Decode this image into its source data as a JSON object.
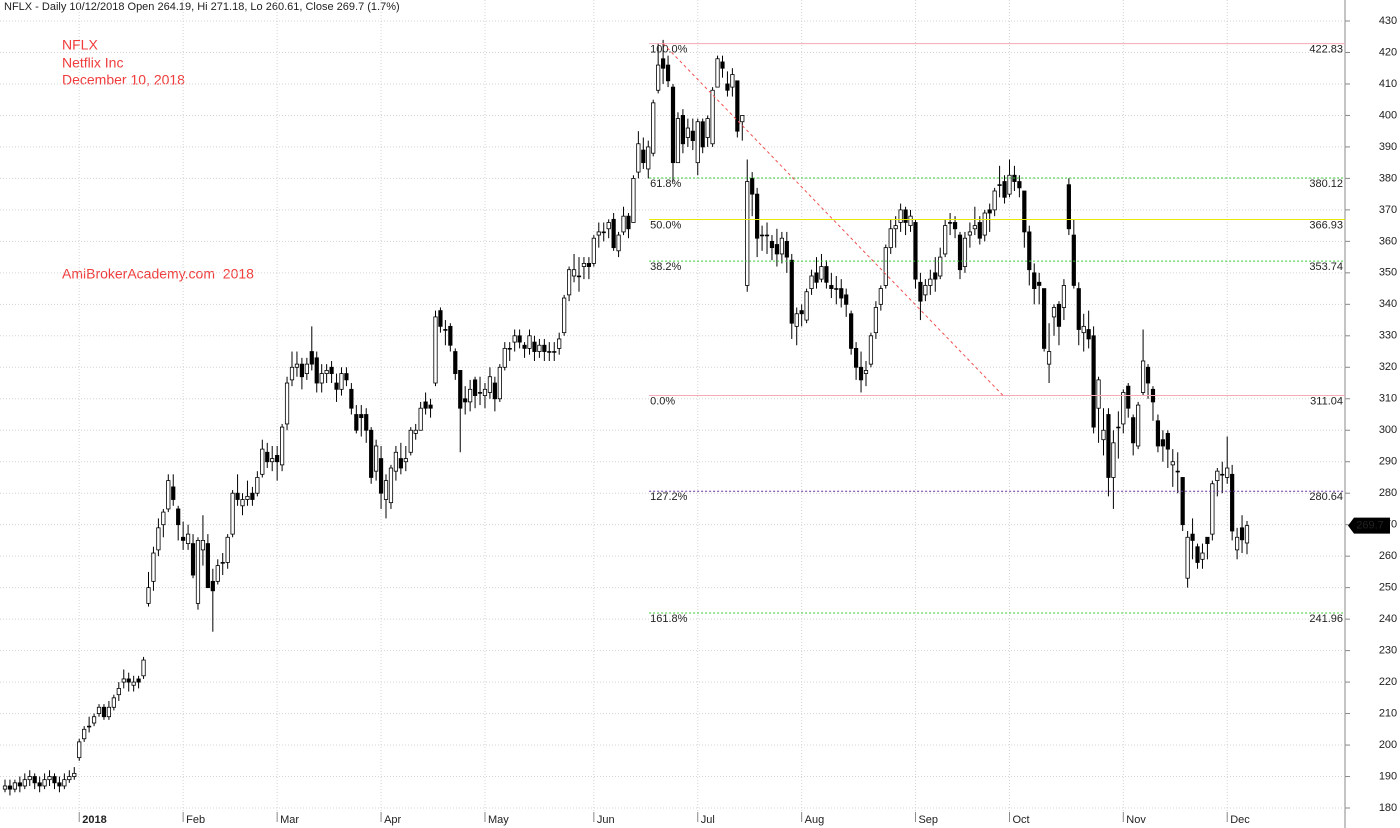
{
  "chart_data": {
    "type": "candlestick",
    "title": "NFLX - Daily 10/12/2018 Open 264.19, Hi 271.18, Lo 260.61, Close 269.7 (1.7%)",
    "annotations": [
      "NFLX",
      "Netflix Inc",
      "December 10, 2018"
    ],
    "watermark": "AmiBrokerAcademy.com  2018",
    "categories": [
      null,
      null,
      null,
      null,
      null,
      null,
      null,
      null,
      null,
      null,
      null,
      null,
      null,
      null,
      null,
      "2018",
      null,
      null,
      null,
      null,
      null,
      null,
      null,
      null,
      null,
      null,
      null,
      null,
      null,
      null,
      null,
      null,
      null,
      null,
      null,
      null,
      "Feb",
      null,
      null,
      null,
      null,
      null,
      null,
      null,
      null,
      null,
      null,
      null,
      null,
      null,
      null,
      null,
      null,
      null,
      null,
      "Mar",
      null,
      null,
      null,
      null,
      null,
      null,
      null,
      null,
      null,
      null,
      null,
      null,
      null,
      null,
      null,
      null,
      null,
      null,
      null,
      null,
      "Apr",
      null,
      null,
      null,
      null,
      null,
      null,
      null,
      null,
      null,
      null,
      null,
      null,
      null,
      null,
      null,
      null,
      null,
      null,
      null,
      null,
      "May",
      null,
      null,
      null,
      null,
      null,
      null,
      null,
      null,
      null,
      null,
      null,
      null,
      null,
      null,
      null,
      null,
      null,
      null,
      null,
      null,
      null,
      "Jun",
      null,
      null,
      null,
      null,
      null,
      null,
      null,
      null,
      null,
      null,
      null,
      null,
      null,
      null,
      null,
      null,
      null,
      null,
      null,
      null,
      "Jul",
      null,
      null,
      null,
      null,
      null,
      null,
      null,
      null,
      null,
      null,
      null,
      null,
      null,
      null,
      null,
      null,
      null,
      null,
      null,
      null,
      "Aug",
      null,
      null,
      null,
      null,
      null,
      null,
      null,
      null,
      null,
      null,
      null,
      null,
      null,
      null,
      null,
      null,
      null,
      null,
      null,
      null,
      null,
      null,
      "Sep",
      null,
      null,
      null,
      null,
      null,
      null,
      null,
      null,
      null,
      null,
      null,
      null,
      null,
      null,
      null,
      null,
      null,
      null,
      "Oct",
      null,
      null,
      null,
      null,
      null,
      null,
      null,
      null,
      null,
      null,
      null,
      null,
      null,
      null,
      null,
      null,
      null,
      null,
      null,
      null,
      null,
      null,
      "Nov",
      null,
      null,
      null,
      null,
      null,
      null,
      null,
      null,
      null,
      null,
      null,
      null,
      null,
      null,
      null,
      null,
      null,
      null,
      null,
      null,
      "Dec",
      null,
      null,
      null,
      null
    ],
    "open": [
      186,
      187,
      186,
      188,
      187,
      189,
      190,
      188,
      187,
      189,
      190,
      188,
      187,
      189,
      190,
      196,
      202,
      206,
      207,
      210,
      212,
      209,
      212,
      216,
      220,
      221,
      219,
      221,
      222,
      245,
      252,
      262,
      270,
      275,
      282,
      275,
      266,
      264,
      264,
      245,
      262,
      264,
      252,
      252,
      258,
      258,
      267,
      280,
      276,
      278,
      280,
      280,
      286,
      293,
      290,
      292,
      289,
      302,
      316,
      320,
      321,
      318,
      325,
      323,
      315,
      318,
      320,
      315,
      313,
      318,
      313,
      305,
      305,
      305,
      300,
      287,
      291,
      278,
      277,
      287,
      291,
      290,
      293,
      299,
      300,
      309,
      308,
      315,
      338,
      332,
      333,
      325,
      319,
      310,
      309,
      316,
      312,
      311,
      312,
      315,
      310,
      320,
      326,
      328,
      330,
      327,
      326,
      328,
      325,
      327,
      325,
      325,
      326,
      331,
      343,
      349,
      349,
      352,
      353,
      353,
      362,
      363,
      364,
      367,
      357,
      363,
      368,
      366,
      382,
      389,
      383,
      388,
      408,
      418,
      416,
      409,
      385,
      400,
      393,
      395,
      385,
      398,
      393,
      391,
      409,
      417,
      410,
      409,
      411,
      398,
      346,
      380,
      375,
      362,
      362,
      360,
      359,
      356,
      360,
      354,
      333,
      338,
      335,
      345,
      350,
      348,
      352,
      346,
      345,
      345,
      343,
      337,
      326,
      320,
      318,
      321,
      331,
      340,
      346,
      358,
      364,
      366,
      370,
      365,
      366,
      347,
      343,
      346,
      350,
      349,
      356,
      366,
      366,
      362,
      352,
      362,
      364,
      366,
      362,
      370,
      370,
      378,
      379,
      375,
      381,
      379,
      376,
      363,
      350,
      347,
      345,
      321,
      336,
      340,
      339,
      378,
      362,
      345,
      331,
      332,
      330,
      307,
      297,
      305,
      285,
      301,
      302,
      314,
      304,
      295,
      312,
      320,
      313,
      303,
      297,
      299,
      289,
      287,
      285,
      253,
      267,
      263,
      259,
      266,
      267,
      284,
      286,
      285,
      286,
      262,
      269,
      264.19
    ],
    "high": [
      189,
      189,
      189,
      190,
      191,
      192,
      191,
      190,
      191,
      192,
      191,
      190,
      191,
      192,
      193,
      202,
      206,
      209,
      210,
      213,
      213,
      214,
      216,
      220,
      224,
      223,
      222,
      222,
      228,
      255,
      263,
      272,
      275,
      286,
      286,
      276,
      271,
      270,
      267,
      266,
      273,
      267,
      256,
      259,
      261,
      267,
      281,
      286,
      280,
      284,
      282,
      287,
      297,
      296,
      295,
      295,
      302,
      317,
      325,
      325,
      323,
      323,
      333,
      325,
      321,
      321,
      322,
      318,
      320,
      320,
      315,
      308,
      308,
      307,
      301,
      297,
      295,
      286,
      289,
      295,
      296,
      295,
      301,
      302,
      309,
      312,
      310,
      338,
      339,
      335,
      334,
      326,
      319,
      314,
      316,
      317,
      317,
      315,
      320,
      317,
      321,
      328,
      328,
      332,
      332,
      328,
      332,
      330,
      329,
      329,
      328,
      328,
      331,
      343,
      352,
      356,
      355,
      355,
      355,
      362,
      366,
      366,
      367,
      369,
      363,
      371,
      369,
      381,
      395,
      393,
      392,
      405,
      423,
      424,
      419,
      410,
      401,
      402,
      399,
      399,
      399,
      399,
      400,
      409,
      419,
      419,
      414,
      415,
      411,
      400,
      386,
      382,
      377,
      365,
      366,
      362,
      364,
      363,
      363,
      356,
      339,
      340,
      345,
      351,
      355,
      356,
      354,
      350,
      349,
      348,
      345,
      338,
      328,
      325,
      322,
      331,
      341,
      346,
      359,
      367,
      368,
      372,
      371,
      370,
      367,
      350,
      348,
      351,
      355,
      358,
      367,
      369,
      368,
      363,
      363,
      366,
      371,
      368,
      370,
      372,
      377,
      384,
      381,
      386,
      384,
      381,
      376,
      365,
      353,
      350,
      345,
      334,
      340,
      341,
      348,
      380,
      367,
      347,
      337,
      338,
      333,
      317,
      307,
      307,
      300,
      306,
      313,
      315,
      305,
      309,
      332,
      321,
      314,
      305,
      300,
      300,
      294,
      293,
      285,
      268,
      272,
      264,
      264,
      266,
      284,
      288,
      290,
      298,
      289,
      269,
      273,
      271.18
    ],
    "low": [
      185,
      184,
      185,
      185,
      186,
      187,
      186,
      185,
      186,
      187,
      186,
      185,
      186,
      188,
      189,
      195,
      201,
      204,
      206,
      209,
      208,
      208,
      211,
      214,
      218,
      217,
      217,
      218,
      221,
      244,
      249,
      260,
      266,
      274,
      276,
      265,
      262,
      262,
      253,
      243,
      257,
      250,
      236,
      251,
      254,
      256,
      266,
      276,
      273,
      276,
      276,
      279,
      285,
      288,
      287,
      284,
      287,
      300,
      314,
      317,
      313,
      316,
      319,
      312,
      312,
      315,
      315,
      309,
      311,
      314,
      305,
      299,
      298,
      296,
      283,
      284,
      275,
      272,
      275,
      284,
      286,
      287,
      292,
      297,
      300,
      305,
      304,
      314,
      331,
      327,
      325,
      316,
      293,
      305,
      306,
      307,
      308,
      307,
      310,
      306,
      309,
      319,
      322,
      325,
      326,
      323,
      324,
      322,
      323,
      322,
      322,
      322,
      324,
      330,
      341,
      347,
      344,
      348,
      348,
      352,
      358,
      360,
      361,
      357,
      355,
      362,
      361,
      366,
      380,
      383,
      380,
      387,
      407,
      410,
      409,
      379,
      385,
      388,
      390,
      389,
      381,
      388,
      390,
      390,
      409,
      412,
      406,
      406,
      393,
      392,
      344,
      368,
      355,
      357,
      356,
      354,
      352,
      353,
      350,
      329,
      327,
      333,
      334,
      343,
      345,
      347,
      345,
      342,
      340,
      339,
      336,
      324,
      316,
      312,
      314,
      320,
      329,
      338,
      345,
      356,
      358,
      363,
      362,
      363,
      345,
      335,
      341,
      343,
      344,
      348,
      355,
      362,
      361,
      348,
      350,
      358,
      362,
      359,
      360,
      363,
      368,
      374,
      372,
      374,
      376,
      374,
      358,
      346,
      340,
      340,
      325,
      315,
      330,
      327,
      335,
      362,
      345,
      327,
      325,
      326,
      299,
      296,
      292,
      279,
      275,
      291,
      299,
      304,
      292,
      294,
      311,
      310,
      303,
      293,
      290,
      288,
      282,
      280,
      268,
      250,
      259,
      256,
      256,
      259,
      265,
      279,
      280,
      283,
      265,
      259,
      261,
      260.61
    ],
    "close": [
      187,
      186,
      188,
      187,
      189,
      190,
      188,
      187,
      189,
      190,
      188,
      187,
      189,
      190,
      191,
      201,
      205,
      206,
      209,
      212,
      209,
      212,
      215,
      218,
      221,
      220,
      220,
      220,
      227,
      250,
      261,
      269,
      274,
      284,
      278,
      270,
      265,
      267,
      254,
      265,
      265,
      250,
      249,
      257,
      258,
      266,
      280,
      278,
      278,
      279,
      278,
      285,
      294,
      290,
      291,
      290,
      301,
      315,
      320,
      321,
      317,
      321,
      321,
      315,
      318,
      319,
      318,
      313,
      318,
      316,
      307,
      300,
      304,
      300,
      285,
      295,
      280,
      284,
      288,
      293,
      288,
      291,
      300,
      300,
      307,
      307,
      307,
      336,
      333,
      332,
      327,
      318,
      307,
      309,
      313,
      311,
      312,
      313,
      317,
      310,
      320,
      326,
      326,
      330,
      328,
      326,
      330,
      325,
      327,
      325,
      325,
      325,
      329,
      342,
      351,
      351,
      349,
      353,
      352,
      361,
      363,
      363,
      366,
      358,
      362,
      368,
      364,
      380,
      391,
      385,
      390,
      404,
      416,
      415,
      411,
      385,
      399,
      391,
      396,
      392,
      398,
      390,
      399,
      408,
      418,
      415,
      408,
      413,
      395,
      400,
      379,
      375,
      361,
      362,
      362,
      358,
      356,
      361,
      355,
      334,
      337,
      337,
      344,
      349,
      347,
      352,
      347,
      345,
      345,
      342,
      340,
      326,
      320,
      316,
      319,
      330,
      339,
      345,
      358,
      364,
      365,
      370,
      366,
      368,
      348,
      341,
      346,
      348,
      348,
      355,
      365,
      366,
      364,
      351,
      361,
      363,
      365,
      361,
      369,
      369,
      376,
      378,
      374,
      381,
      379,
      377,
      363,
      351,
      345,
      346,
      326,
      325,
      339,
      333,
      346,
      364,
      346,
      332,
      333,
      329,
      301,
      316,
      300,
      285,
      296,
      301,
      312,
      307,
      296,
      308,
      322,
      315,
      309,
      295,
      295,
      294,
      290,
      287,
      270,
      266,
      265,
      258,
      261,
      264,
      283,
      287,
      286,
      288,
      268,
      266,
      265.2,
      269.7
    ],
    "ylim": [
      173.65,
      436.67
    ],
    "yticks": [
      180,
      190,
      200,
      210,
      220,
      230,
      240,
      250,
      260,
      270,
      280,
      290,
      300,
      310,
      320,
      330,
      340,
      350,
      360,
      370,
      380,
      390,
      400,
      410,
      420,
      430
    ],
    "grid": true,
    "fib_levels": [
      {
        "label": "100.0%",
        "value": 422.83,
        "color": "#f6aab8"
      },
      {
        "label": "61.8%",
        "value": 380.12,
        "color": "#33cc33"
      },
      {
        "label": "50.0%",
        "value": 366.93,
        "color": "#e8e800"
      },
      {
        "label": "38.2%",
        "value": 353.74,
        "color": "#33cc33"
      },
      {
        "label": "0.0%",
        "value": 311.04,
        "color": "#f6aab8"
      },
      {
        "label": "127.2%",
        "value": 280.64,
        "color": "#663399"
      },
      {
        "label": "161.8%",
        "value": 241.96,
        "color": "#33cc33"
      }
    ]
  }
}
